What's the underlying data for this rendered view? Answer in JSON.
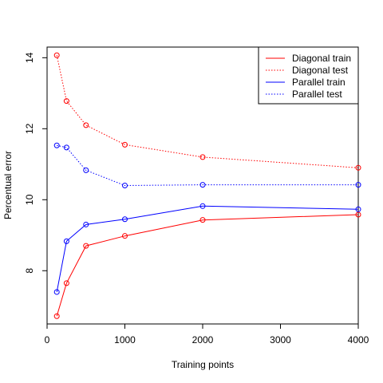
{
  "chart_data": {
    "type": "line",
    "title": "",
    "xlabel": "Training points",
    "ylabel": "Percentual error",
    "xlim": [
      0,
      4000
    ],
    "ylim": [
      6.5,
      14.3
    ],
    "x_ticks": [
      0,
      1000,
      2000,
      3000,
      4000
    ],
    "y_ticks": [
      8,
      10,
      12,
      14
    ],
    "grid": false,
    "legend_position": "top-right",
    "x": [
      125,
      250,
      500,
      1000,
      2000,
      4000
    ],
    "series": [
      {
        "name": "Diagonal train",
        "color": "#ff0000",
        "dash": "solid",
        "values": [
          6.72,
          7.65,
          8.7,
          8.98,
          9.43,
          9.58
        ]
      },
      {
        "name": "Diagonal test",
        "color": "#ff0000",
        "dash": "dotted",
        "values": [
          14.07,
          12.78,
          12.1,
          11.55,
          11.2,
          10.9
        ]
      },
      {
        "name": "Parallel train",
        "color": "#0000ff",
        "dash": "solid",
        "values": [
          7.4,
          8.83,
          9.3,
          9.45,
          9.82,
          9.73
        ]
      },
      {
        "name": "Parallel test",
        "color": "#0000ff",
        "dash": "dotted",
        "values": [
          11.53,
          11.47,
          10.83,
          10.4,
          10.42,
          10.42
        ]
      }
    ]
  }
}
